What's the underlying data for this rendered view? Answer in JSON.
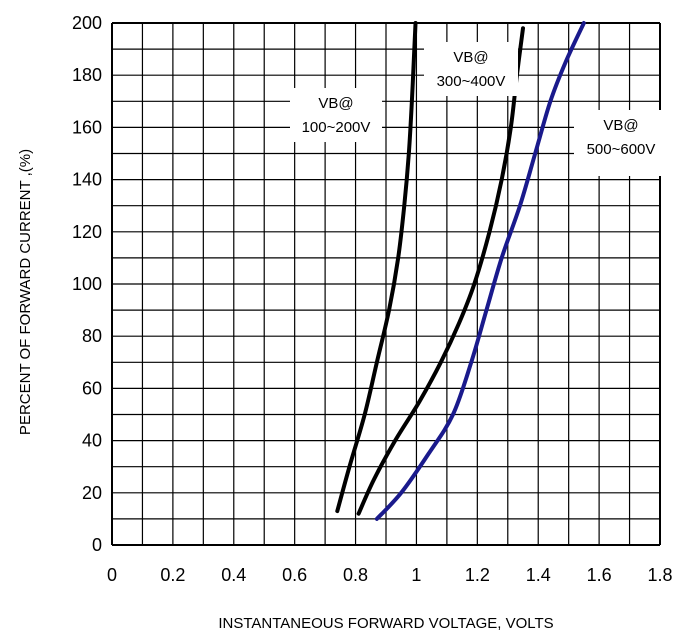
{
  "chart_data": {
    "type": "line",
    "title": "",
    "xlabel": "INSTANTANEOUS FORWARD VOLTAGE, VOLTS",
    "ylabel": "PERCENT OF FORWARD CURRENT ,(%)",
    "xlim": [
      0,
      1.8
    ],
    "ylim": [
      0,
      200
    ],
    "x_ticks": [
      "0",
      "0.2",
      "0.4",
      "0.6",
      "0.8",
      "1",
      "1.2",
      "1.4",
      "1.6",
      "1.8"
    ],
    "y_ticks": [
      "0",
      "20",
      "40",
      "60",
      "80",
      "100",
      "120",
      "140",
      "160",
      "180",
      "200"
    ],
    "x_minor_gridlines": 18,
    "y_minor_gridlines": 20,
    "grid": true,
    "series": [
      {
        "label_lines": [
          "VB@",
          "100~200V"
        ],
        "color": "#000000",
        "points": [
          [
            0.74,
            13
          ],
          [
            0.78,
            30
          ],
          [
            0.83,
            50
          ],
          [
            0.87,
            70
          ],
          [
            0.91,
            90
          ],
          [
            0.94,
            110
          ],
          [
            0.96,
            130
          ],
          [
            0.975,
            150
          ],
          [
            0.985,
            170
          ],
          [
            0.993,
            190
          ],
          [
            0.997,
            200
          ]
        ]
      },
      {
        "label_lines": [
          "VB@",
          "300~400V"
        ],
        "color": "#000000",
        "points": [
          [
            0.81,
            12
          ],
          [
            0.86,
            25
          ],
          [
            0.93,
            40
          ],
          [
            1.01,
            55
          ],
          [
            1.08,
            70
          ],
          [
            1.14,
            85
          ],
          [
            1.19,
            100
          ],
          [
            1.24,
            120
          ],
          [
            1.28,
            140
          ],
          [
            1.31,
            160
          ],
          [
            1.33,
            180
          ],
          [
            1.35,
            198
          ]
        ]
      },
      {
        "label_lines": [
          "VB@",
          "500~600V"
        ],
        "color": "#1a1a8c",
        "points": [
          [
            0.87,
            10
          ],
          [
            0.95,
            20
          ],
          [
            1.04,
            35
          ],
          [
            1.12,
            50
          ],
          [
            1.18,
            70
          ],
          [
            1.23,
            90
          ],
          [
            1.28,
            110
          ],
          [
            1.34,
            130
          ],
          [
            1.39,
            150
          ],
          [
            1.44,
            170
          ],
          [
            1.49,
            185
          ],
          [
            1.55,
            200
          ]
        ]
      }
    ]
  }
}
